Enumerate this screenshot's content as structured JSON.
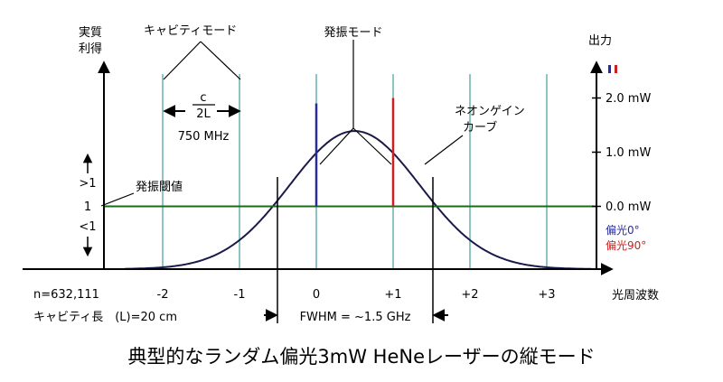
{
  "labels": {
    "y_left": [
      "実質",
      "利得"
    ],
    "y_right": "出力",
    "x_axis": "光周波数",
    "cavity_mode": "キャビティモード",
    "lasing_mode": "発振モード",
    "neon_gain": [
      "ネオンゲイン",
      "カーブ"
    ],
    "threshold": "発振閾値",
    "spacing_num": "c",
    "spacing_den": "2L",
    "spacing_freq": "750 MHz",
    "gt1": ">1",
    "eq1": "1",
    "lt1": "<1",
    "n_value": "n=632,111",
    "cavity_length": "キャビティ長　(L)=20 cm",
    "fwhm": "FWHM = ~1.5 GHz",
    "power_ticks": [
      "2.0 mW",
      "1.0 mW",
      "0.0 mW"
    ],
    "pol0": "偏光0°",
    "pol90": "偏光90°",
    "caption": "典型的なランダム偏光3mW HeNeレーザーの縦モード"
  },
  "chart_data": {
    "type": "line",
    "x_ticks": [
      "-2",
      "-1",
      "0",
      "+1",
      "+2",
      "+3"
    ],
    "mode_positions": [
      -2,
      -1,
      0,
      1,
      2,
      3
    ],
    "xlim": [
      -3.5,
      3.8
    ],
    "gain_curve": {
      "center": 0.5,
      "peak": 2.2,
      "fwhm": 2.0,
      "name": "ネオンゲイン カーブ"
    },
    "threshold": 1.0,
    "power_axis": {
      "ticks": [
        2.0,
        1.0,
        0.0
      ],
      "unit": "mW"
    },
    "lasing_modes": [
      {
        "position": 0,
        "power_mW": 1.9,
        "polarization": "0°"
      },
      {
        "position": 1,
        "power_mW": 2.0,
        "polarization": "90°"
      }
    ],
    "fwhm_GHz": 1.5,
    "mode_spacing_MHz": 750,
    "colors": {
      "curve": "#1a1a4a",
      "threshold": "#1a6b1a",
      "cavity": "#8fc4c4",
      "pol0": "#2a2aa0",
      "pol90": "#cc2020",
      "axis": "#000000"
    }
  }
}
